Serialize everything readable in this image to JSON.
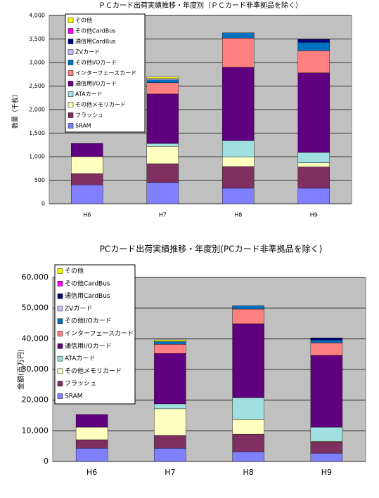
{
  "chart_data": [
    {
      "type": "bar",
      "stacked": true,
      "title": "ＰＣカード出荷実績推移・年度別（ＰＣカード非準拠品を除く）",
      "y_label": "数量（千枚）",
      "categories": [
        "H6",
        "H7",
        "H8",
        "H9"
      ],
      "ylim": [
        0,
        4000
      ],
      "yticks": [
        0,
        500,
        {
          "value": 1000,
          "label": "1,000"
        },
        {
          "value": 1500,
          "label": "1,500"
        },
        {
          "value": 2000,
          "label": "2,000"
        },
        {
          "value": 2500,
          "label": "2,500"
        },
        {
          "value": 3000,
          "label": "3,000"
        },
        {
          "value": 3500,
          "label": "3,500"
        },
        {
          "value": 4000,
          "label": "4,000"
        }
      ],
      "grid": true,
      "series": [
        {
          "name": "SRAM",
          "color": "#8080ff",
          "values": [
            400,
            450,
            330,
            330
          ]
        },
        {
          "name": "フラッシュ",
          "color": "#803060",
          "values": [
            240,
            400,
            460,
            450
          ]
        },
        {
          "name": "その他メモリカード",
          "color": "#ffffc0",
          "values": [
            360,
            370,
            200,
            90
          ]
        },
        {
          "name": "ATAカード",
          "color": "#a0e0e0",
          "values": [
            0,
            60,
            350,
            220
          ]
        },
        {
          "name": "通信用I/Oカード",
          "color": "#600080",
          "values": [
            280,
            1050,
            1560,
            1690
          ]
        },
        {
          "name": "インターフェースカード",
          "color": "#ff8080",
          "values": [
            0,
            240,
            620,
            470
          ]
        },
        {
          "name": "その他I/Oカード",
          "color": "#0070c0",
          "values": [
            0,
            60,
            110,
            180
          ]
        },
        {
          "name": "ZVカード",
          "color": "#c0c0ff",
          "values": [
            0,
            30,
            0,
            0
          ]
        },
        {
          "name": "通信用CardBus",
          "color": "#000080",
          "values": [
            0,
            0,
            0,
            60
          ]
        },
        {
          "name": "その他CardBus",
          "color": "#ff00ff",
          "values": [
            0,
            0,
            0,
            0
          ]
        },
        {
          "name": "その他",
          "color": "#ffff00",
          "values": [
            0,
            30,
            0,
            0
          ]
        }
      ]
    },
    {
      "type": "bar",
      "stacked": true,
      "title": "PCカード出荷実績推移・年度別(PCカード非準拠品を除く)",
      "y_label": "金額(百万円)",
      "categories": [
        "H6",
        "H7",
        "H8",
        "H9"
      ],
      "ylim": [
        0,
        60000
      ],
      "yticks": [
        0,
        {
          "value": 10000,
          "label": "10,000"
        },
        {
          "value": 20000,
          "label": "20,000"
        },
        {
          "value": 30000,
          "label": "30,000"
        },
        {
          "value": 40000,
          "label": "40,000"
        },
        {
          "value": 50000,
          "label": "50,000"
        },
        {
          "value": 60000,
          "label": "60,000"
        }
      ],
      "grid": true,
      "series": [
        {
          "name": "SRAM",
          "color": "#8080ff",
          "values": [
            4300,
            4300,
            3200,
            2700
          ]
        },
        {
          "name": "フラッシュ",
          "color": "#803060",
          "values": [
            2800,
            4200,
            5700,
            3700
          ]
        },
        {
          "name": "その他メモリカード",
          "color": "#ffffc0",
          "values": [
            4100,
            8700,
            4800,
            200
          ]
        },
        {
          "name": "ATAカード",
          "color": "#a0e0e0",
          "values": [
            0,
            1600,
            7100,
            4600
          ]
        },
        {
          "name": "通信用I/Oカード",
          "color": "#600080",
          "values": [
            4100,
            16400,
            24100,
            23400
          ]
        },
        {
          "name": "インターフェースカード",
          "color": "#ff8080",
          "values": [
            0,
            3000,
            4800,
            4100
          ]
        },
        {
          "name": "その他I/Oカード",
          "color": "#0070c0",
          "values": [
            0,
            900,
            1100,
            900
          ]
        },
        {
          "name": "ZVカード",
          "color": "#c0c0ff",
          "values": [
            0,
            0,
            0,
            0
          ]
        },
        {
          "name": "通信用CardBus",
          "color": "#000080",
          "values": [
            0,
            0,
            0,
            700
          ]
        },
        {
          "name": "その他CardBus",
          "color": "#ff00ff",
          "values": [
            0,
            0,
            0,
            0
          ]
        },
        {
          "name": "その他",
          "color": "#ffff00",
          "values": [
            0,
            500,
            0,
            0
          ]
        }
      ]
    }
  ]
}
